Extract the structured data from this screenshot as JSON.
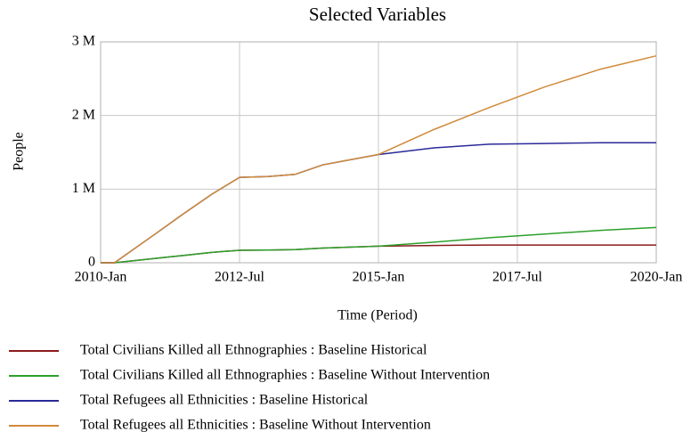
{
  "chart_data": {
    "type": "line",
    "title": "Selected Variables",
    "x_label": "Time (Period)",
    "y_label": "People",
    "x": [
      2010,
      2010.25,
      2011,
      2011.5,
      2012,
      2012.5,
      2013,
      2013.5,
      2014,
      2015,
      2016,
      2017,
      2018,
      2019,
      2020
    ],
    "series": [
      {
        "name": "Total Civilians Killed all Ethnographies : Baseline Historical",
        "color": "#8b1a1a",
        "values": [
          0,
          0,
          60000,
          100000,
          140000,
          170000,
          172000,
          178000,
          200000,
          225000,
          235000,
          240000,
          240000,
          240000,
          240000
        ]
      },
      {
        "name": "Total Civilians Killed all Ethnographies : Baseline Without Intervention",
        "color": "#2ca02c",
        "values": [
          0,
          0,
          60000,
          100000,
          140000,
          170000,
          172000,
          178000,
          200000,
          225000,
          280000,
          340000,
          390000,
          440000,
          480000
        ]
      },
      {
        "name": "Total Refugees all Ethnicities : Baseline Historical",
        "color": "#2a2a9a",
        "values": [
          0,
          0,
          400000,
          670000,
          930000,
          1160000,
          1170000,
          1200000,
          1330000,
          1470000,
          1560000,
          1610000,
          1620000,
          1630000,
          1630000
        ]
      },
      {
        "name": "Total Refugees all Ethnicities : Baseline Without Intervention",
        "color": "#d08a3a",
        "values": [
          0,
          0,
          400000,
          670000,
          930000,
          1160000,
          1170000,
          1200000,
          1330000,
          1470000,
          1810000,
          2110000,
          2390000,
          2630000,
          2810000
        ]
      }
    ],
    "xlim": [
      2010,
      2020
    ],
    "xticks": [
      {
        "value": 2010,
        "label": "2010-Jan"
      },
      {
        "value": 2012.5,
        "label": "2012-Jul"
      },
      {
        "value": 2015,
        "label": "2015-Jan"
      },
      {
        "value": 2017.5,
        "label": "2017-Jul"
      },
      {
        "value": 2020,
        "label": "2020-Jan"
      }
    ],
    "ylim": [
      0,
      3000000
    ],
    "yticks": [
      0,
      {
        "value": 1000000,
        "label": "1 M"
      },
      {
        "value": 2000000,
        "label": "2 M"
      },
      {
        "value": 3000000,
        "label": "3 M"
      }
    ],
    "grid": true
  }
}
